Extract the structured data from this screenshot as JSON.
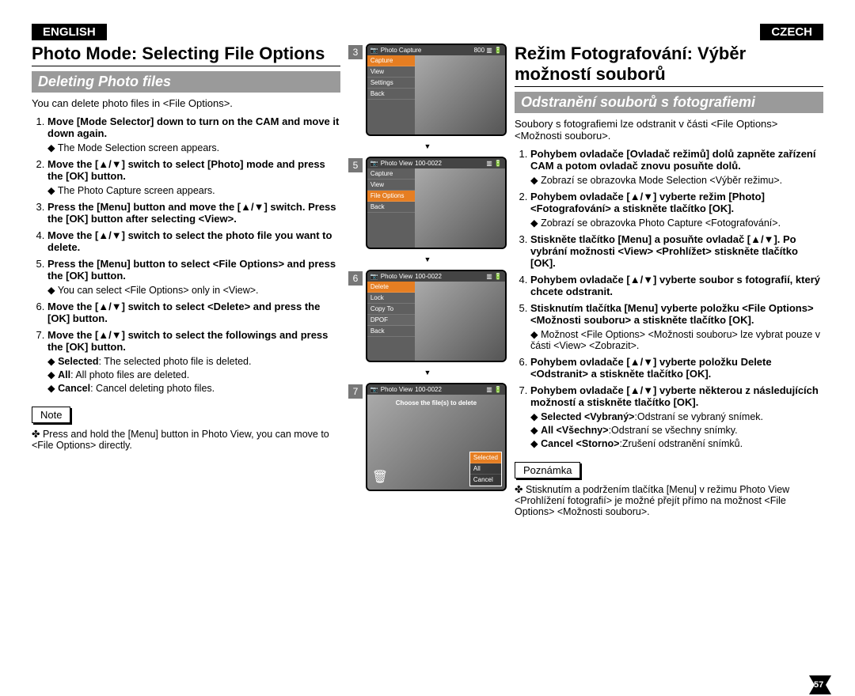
{
  "english": {
    "lang": "ENGLISH",
    "title": "Photo Mode: Selecting File Options",
    "subtitle": "Deleting Photo files",
    "intro": "You can delete photo files in <File Options>.",
    "steps": [
      {
        "b": "Move [Mode Selector] down to turn on the CAM and move it down again.",
        "sub": [
          "The Mode Selection screen appears."
        ]
      },
      {
        "b": "Move the [▲/▼] switch to select [Photo] mode and press the [OK] button.",
        "sub": [
          "The Photo Capture screen appears."
        ]
      },
      {
        "b": "Press the [Menu] button and move the [▲/▼] switch. Press the [OK] button after selecting <View>.",
        "sub": []
      },
      {
        "b": "Move the [▲/▼] switch to select the photo file you want to delete.",
        "sub": []
      },
      {
        "b": "Press the [Menu] button to select <File Options> and press the [OK] button.",
        "sub": [
          "You can select <File Options> only in <View>."
        ]
      },
      {
        "b": "Move the [▲/▼] switch to select <Delete> and press the [OK] button.",
        "sub": []
      },
      {
        "b": "Move the [▲/▼] switch to select the followings and press the [OK] button.",
        "sub": [
          "Selected: The selected photo file is deleted.",
          "All: All photo files are deleted.",
          "Cancel: Cancel deleting photo files."
        ]
      }
    ],
    "noteLabel": "Note",
    "notes": [
      "Press and hold the [Menu] button in Photo View, you can move to <File Options> directly."
    ]
  },
  "czech": {
    "lang": "CZECH",
    "title": "Režim Fotografování: Výběr možností souborů",
    "subtitle": "Odstranění souborů s fotografiemi",
    "intro": "Soubory s fotografiemi lze odstranit v části <File Options> <Možnosti souboru>.",
    "steps": [
      {
        "b": "Pohybem ovladače [Ovladač režimů] dolů zapněte zařízení CAM a potom ovladač znovu posuňte dolů.",
        "sub": [
          "Zobrazí se obrazovka Mode Selection <Výběr režimu>."
        ]
      },
      {
        "b": "Pohybem ovladače [▲/▼] vyberte režim [Photo] <Fotografování> a stiskněte tlačítko [OK].",
        "sub": [
          "Zobrazí se obrazovka Photo Capture <Fotografování>."
        ]
      },
      {
        "b": "Stiskněte tlačítko [Menu] a posuňte ovladač [▲/▼]. Po vybrání možnosti <View> <Prohlížet> stiskněte tlačítko [OK].",
        "sub": []
      },
      {
        "b": "Pohybem ovladače [▲/▼] vyberte soubor s fotografií, který chcete odstranit.",
        "sub": []
      },
      {
        "b": "Stisknutím tlačítka [Menu] vyberte položku <File Options> <Možnosti souboru> a stiskněte tlačítko [OK].",
        "sub": [
          "Možnost <File Options> <Možnosti souboru> lze vybrat pouze v části <View> <Zobrazit>."
        ]
      },
      {
        "b": "Pohybem ovladače [▲/▼] vyberte položku Delete <Odstranit> a stiskněte tlačítko [OK].",
        "sub": []
      },
      {
        "b": "Pohybem ovladače [▲/▼] vyberte některou z následujících možností a stiskněte tlačítko [OK].",
        "sub": [
          "Selected <Vybraný>:Odstraní se vybraný snímek.",
          "All <Všechny>:Odstraní se všechny snímky.",
          "Cancel <Storno>:Zrušení odstranění snímků."
        ]
      }
    ],
    "noteLabel": "Poznámka",
    "notes": [
      "Stisknutím a podržením tlačítka [Menu] v režimu Photo View <Prohlížení fotografií> je možné přejít přímo na možnost <File Options> <Možnosti souboru>."
    ]
  },
  "screens": {
    "s3": {
      "num": "3",
      "header": "Photo Capture",
      "badge": "800",
      "menu": [
        "Capture",
        "View",
        "Settings",
        "Back"
      ],
      "hl": 0
    },
    "s5": {
      "num": "5",
      "header": "Photo View",
      "badge": "100-0022",
      "menu": [
        "Capture",
        "View",
        "File Options",
        "Back"
      ],
      "hl": 2
    },
    "s6": {
      "num": "6",
      "header": "Photo View",
      "badge": "100-0022",
      "menu": [
        "Delete",
        "Lock",
        "Copy To",
        "DPOF",
        "Back"
      ],
      "hl": 0,
      "hl2": 3
    },
    "s7": {
      "num": "7",
      "header": "Photo View",
      "badge": "100-0022",
      "caption": "Choose the file(s) to delete",
      "delmenu": [
        "Selected",
        "All",
        "Cancel"
      ],
      "delhl": 0
    }
  },
  "pageNumber": "57"
}
